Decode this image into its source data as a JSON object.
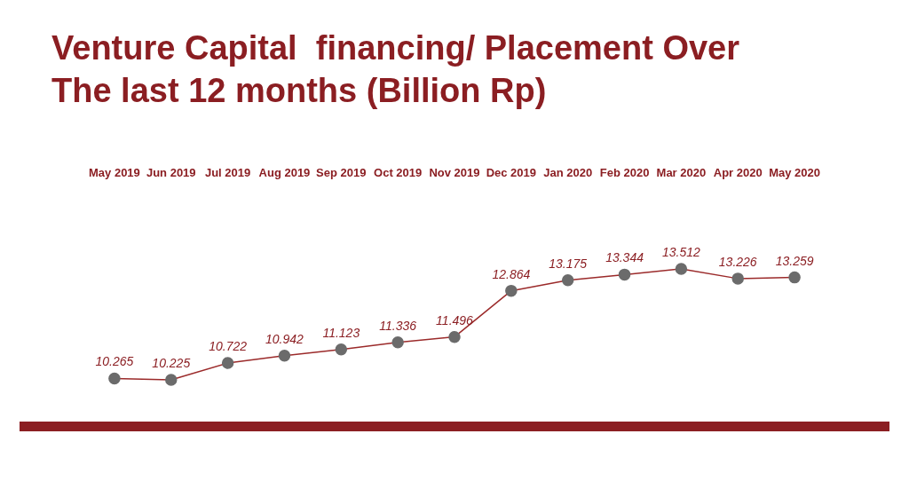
{
  "chart_data": {
    "type": "line",
    "title": "Venture Capital  financing/ Placement Over The last 12 months (Billion Rp)",
    "categories": [
      "May 2019",
      "Jun 2019",
      "Jul 2019",
      "Aug 2019",
      "Sep 2019",
      "Oct 2019",
      "Nov 2019",
      "Dec 2019",
      "Jan 2020",
      "Feb 2020",
      "Mar 2020",
      "Apr 2020",
      "May 2020"
    ],
    "series": [
      {
        "color": "#9b2a2a",
        "values": [
          10.265,
          10.225,
          10.722,
          10.942,
          11.123,
          11.336,
          11.496,
          12.864,
          13.175,
          13.344,
          13.512,
          13.226,
          13.259
        ]
      }
    ],
    "data_labels": true,
    "marker": "circle",
    "line_style": "solid",
    "grid": false,
    "legend": false,
    "tick_labels": "x"
  }
}
